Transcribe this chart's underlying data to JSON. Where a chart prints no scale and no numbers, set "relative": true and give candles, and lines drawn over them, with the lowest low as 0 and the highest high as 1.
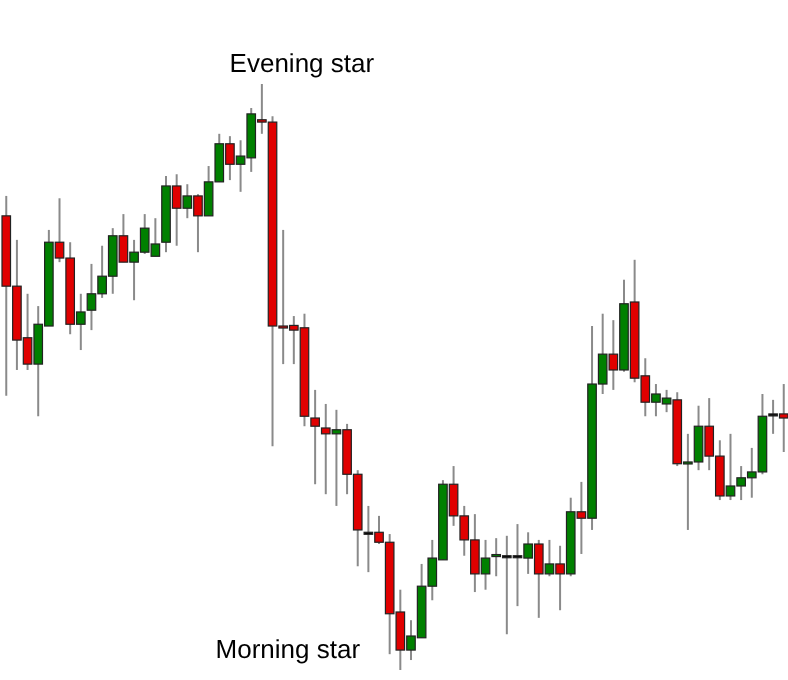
{
  "chart_data": {
    "type": "candlestick",
    "relative": true,
    "categories": [
      null,
      null,
      null,
      null,
      null,
      null,
      null,
      null,
      null,
      null,
      null,
      null,
      null,
      null,
      null,
      null,
      null,
      null,
      null,
      null,
      null,
      null,
      null,
      null,
      null,
      null,
      null,
      null,
      null,
      null,
      null,
      null,
      null,
      null,
      null,
      null,
      null,
      null,
      null,
      null,
      null,
      null,
      null,
      null,
      null,
      null,
      null,
      null,
      null,
      null,
      null,
      null,
      null,
      null,
      null,
      null,
      null,
      null,
      null,
      null,
      null,
      null,
      null,
      null,
      null,
      null,
      null,
      null,
      null,
      null,
      null,
      null,
      null,
      null
    ],
    "ohlc": [
      [
        0.775,
        0.809,
        0.468,
        0.655
      ],
      [
        0.655,
        0.734,
        0.512,
        0.563
      ],
      [
        0.567,
        0.642,
        0.512,
        0.522
      ],
      [
        0.522,
        0.621,
        0.433,
        0.59
      ],
      [
        0.587,
        0.751,
        0.587,
        0.73
      ],
      [
        0.73,
        0.805,
        0.696,
        0.703
      ],
      [
        0.703,
        0.73,
        0.573,
        0.59
      ],
      [
        0.59,
        0.642,
        0.546,
        0.611
      ],
      [
        0.614,
        0.693,
        0.58,
        0.642
      ],
      [
        0.642,
        0.724,
        0.635,
        0.672
      ],
      [
        0.672,
        0.754,
        0.642,
        0.741
      ],
      [
        0.741,
        0.778,
        0.696,
        0.696
      ],
      [
        0.696,
        0.734,
        0.631,
        0.713
      ],
      [
        0.713,
        0.778,
        0.71,
        0.754
      ],
      [
        0.706,
        0.771,
        0.706,
        0.727
      ],
      [
        0.73,
        0.843,
        0.713,
        0.826
      ],
      [
        0.826,
        0.846,
        0.724,
        0.788
      ],
      [
        0.788,
        0.829,
        0.771,
        0.809
      ],
      [
        0.809,
        0.812,
        0.713,
        0.775
      ],
      [
        0.775,
        0.86,
        0.775,
        0.833
      ],
      [
        0.833,
        0.915,
        0.833,
        0.898
      ],
      [
        0.898,
        0.911,
        0.836,
        0.863
      ],
      [
        0.863,
        0.904,
        0.816,
        0.877
      ],
      [
        0.874,
        0.959,
        0.85,
        0.949
      ],
      [
        0.939,
        1,
        0.915,
        0.935
      ],
      [
        0.935,
        0.945,
        0.382,
        0.587
      ],
      [
        0.587,
        0.751,
        0.522,
        0.584
      ],
      [
        0.588,
        0.604,
        0.522,
        0.58
      ],
      [
        0.584,
        0.608,
        0.416,
        0.433
      ],
      [
        0.43,
        0.478,
        0.317,
        0.416
      ],
      [
        0.413,
        0.454,
        0.3,
        0.403
      ],
      [
        0.403,
        0.444,
        0.28,
        0.41
      ],
      [
        0.41,
        0.42,
        0.3,
        0.334
      ],
      [
        0.334,
        0.341,
        0.177,
        0.239
      ],
      [
        0.235,
        0.28,
        0.167,
        0.235
      ],
      [
        0.235,
        0.263,
        0.215,
        0.218
      ],
      [
        0.218,
        0.232,
        0.027,
        0.096
      ],
      [
        0.099,
        0.137,
        0,
        0.034
      ],
      [
        0.034,
        0.085,
        0.017,
        0.058
      ],
      [
        0.055,
        0.181,
        0.055,
        0.143
      ],
      [
        0.143,
        0.222,
        0.119,
        0.191
      ],
      [
        0.188,
        0.324,
        0.188,
        0.317
      ],
      [
        0.317,
        0.348,
        0.246,
        0.263
      ],
      [
        0.263,
        0.28,
        0.195,
        0.222
      ],
      [
        0.222,
        0.266,
        0.133,
        0.164
      ],
      [
        0.164,
        0.222,
        0.137,
        0.191
      ],
      [
        0.195,
        0.225,
        0.16,
        0.197
      ],
      [
        0.195,
        0.229,
        0.061,
        0.195
      ],
      [
        0.195,
        0.249,
        0.109,
        0.193
      ],
      [
        0.191,
        0.235,
        0.164,
        0.215
      ],
      [
        0.215,
        0.222,
        0.089,
        0.164
      ],
      [
        0.164,
        0.222,
        0.16,
        0.181
      ],
      [
        0.181,
        0.212,
        0.102,
        0.164
      ],
      [
        0.164,
        0.294,
        0.16,
        0.27
      ],
      [
        0.27,
        0.321,
        0.198,
        0.259
      ],
      [
        0.259,
        0.587,
        0.239,
        0.488
      ],
      [
        0.488,
        0.608,
        0.471,
        0.539
      ],
      [
        0.539,
        0.597,
        0.478,
        0.512
      ],
      [
        0.512,
        0.666,
        0.509,
        0.625
      ],
      [
        0.628,
        0.7,
        0.491,
        0.498
      ],
      [
        0.502,
        0.532,
        0.433,
        0.457
      ],
      [
        0.457,
        0.488,
        0.433,
        0.471
      ],
      [
        0.454,
        0.478,
        0.44,
        0.464
      ],
      [
        0.461,
        0.474,
        0.348,
        0.352
      ],
      [
        0.352,
        0.403,
        0.239,
        0.355
      ],
      [
        0.355,
        0.451,
        0.341,
        0.416
      ],
      [
        0.416,
        0.464,
        0.341,
        0.365
      ],
      [
        0.365,
        0.392,
        0.29,
        0.297
      ],
      [
        0.297,
        0.403,
        0.29,
        0.314
      ],
      [
        0.314,
        0.348,
        0.29,
        0.328
      ],
      [
        0.328,
        0.379,
        0.294,
        0.338
      ],
      [
        0.338,
        0.471,
        0.334,
        0.433
      ],
      [
        0.437,
        0.461,
        0.403,
        0.437
      ],
      [
        0.437,
        0.488,
        0.372,
        0.43
      ]
    ],
    "colors": [
      "#e00000",
      "#e00000",
      "#e00000",
      "#008000",
      "#008000",
      "#e00000",
      "#e00000",
      "#008000",
      "#008000",
      "#008000",
      "#008000",
      "#e00000",
      "#008000",
      "#008000",
      "#008000",
      "#008000",
      "#e00000",
      "#008000",
      "#e00000",
      "#008000",
      "#008000",
      "#e00000",
      "#008000",
      "#008000",
      "#e00000",
      "#e00000",
      "#e00000",
      "#e00000",
      "#e00000",
      "#e00000",
      "#e00000",
      "#008000",
      "#e00000",
      "#e00000",
      "#000000",
      "#e00000",
      "#e00000",
      "#e00000",
      "#008000",
      "#008000",
      "#008000",
      "#008000",
      "#e00000",
      "#e00000",
      "#e00000",
      "#008000",
      "#008000",
      "#000000",
      "#000000",
      "#008000",
      "#e00000",
      "#008000",
      "#e00000",
      "#008000",
      "#e00000",
      "#008000",
      "#008000",
      "#e00000",
      "#008000",
      "#e00000",
      "#e00000",
      "#008000",
      "#008000",
      "#e00000",
      "#008000",
      "#008000",
      "#e00000",
      "#e00000",
      "#008000",
      "#008000",
      "#008000",
      "#008000",
      "#000000",
      "#e00000"
    ],
    "annotations": [
      "Evening star",
      "Morning star"
    ]
  }
}
